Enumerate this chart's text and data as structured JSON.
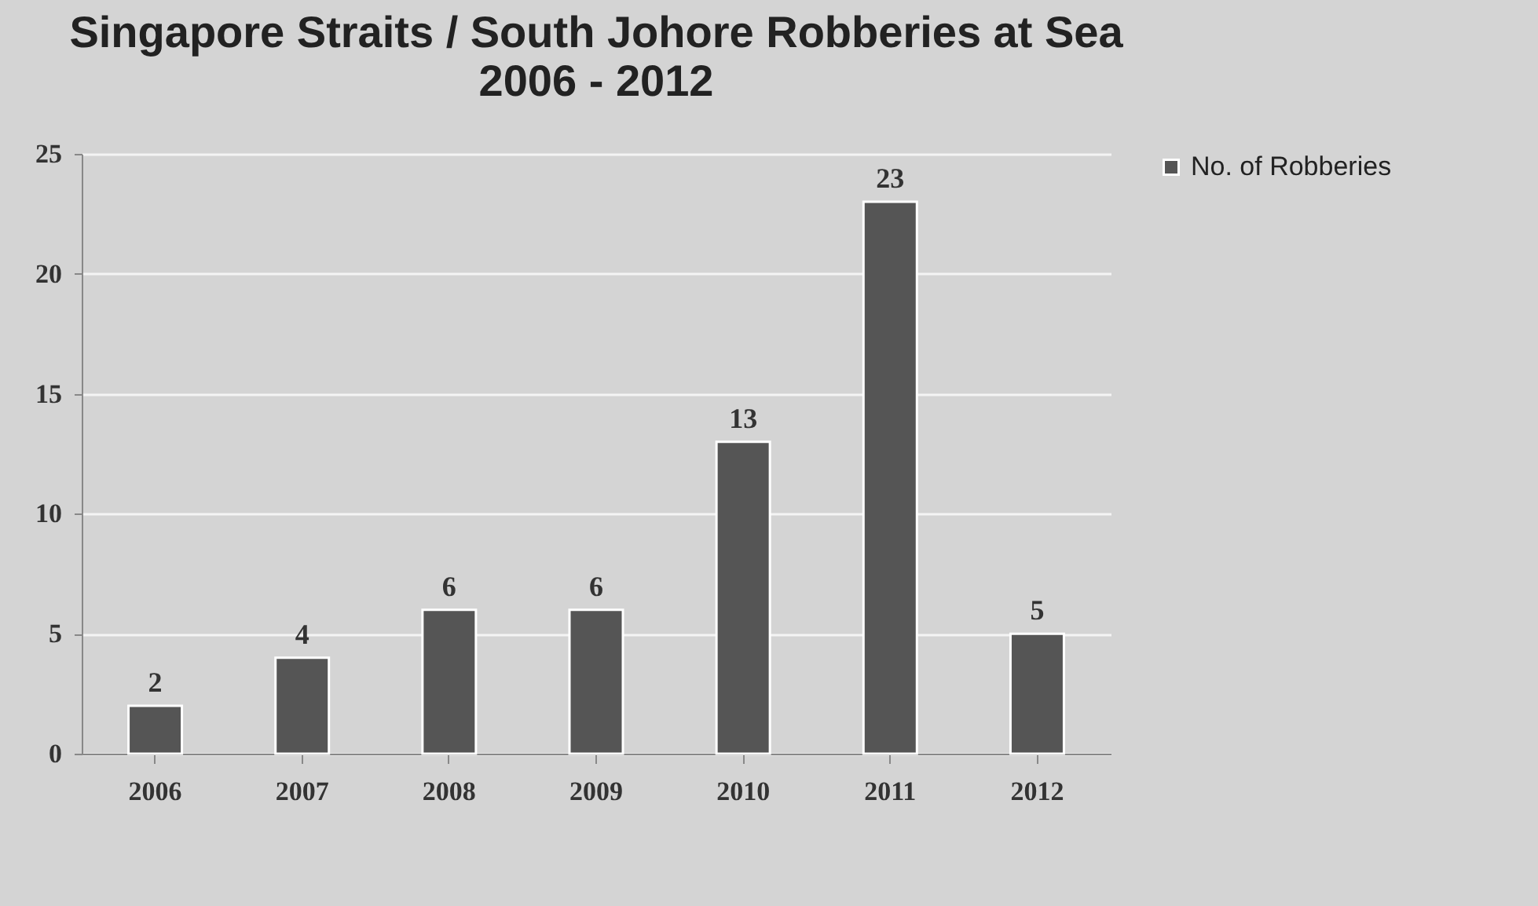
{
  "chart_data": {
    "type": "bar",
    "title": "Singapore Straits / South Johore Robberies at Sea",
    "subtitle": "2006 - 2012",
    "categories": [
      "2006",
      "2007",
      "2008",
      "2009",
      "2010",
      "2011",
      "2012"
    ],
    "series": [
      {
        "name": "No. of Robberies",
        "color": "#555555",
        "values": [
          2,
          4,
          6,
          6,
          13,
          23,
          5
        ]
      }
    ],
    "ylim": [
      0,
      25
    ],
    "yticks": [
      0,
      5,
      10,
      15,
      20,
      25
    ],
    "grid": "y",
    "legend": "right",
    "data_labels": true
  }
}
